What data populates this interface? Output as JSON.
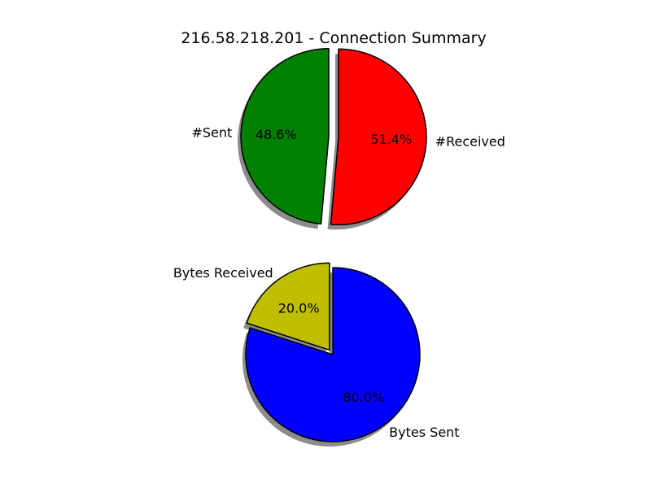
{
  "figure": {
    "title": "216.58.218.201 - Connection Summary"
  },
  "chart_data": [
    {
      "type": "pie",
      "slices": [
        {
          "label": "#Sent",
          "value": 48.6,
          "pct_label": "48.6%",
          "color": "#008000",
          "explode": true
        },
        {
          "label": "#Received",
          "value": 51.4,
          "pct_label": "51.4%",
          "color": "#ff0000",
          "explode": true
        }
      ],
      "start_angle_deg": 90,
      "direction": "counterclockwise",
      "shadow": true
    },
    {
      "type": "pie",
      "slices": [
        {
          "label": "Bytes Received",
          "value": 20.0,
          "pct_label": "20.0%",
          "color": "#bfbf00",
          "explode": true
        },
        {
          "label": "Bytes Sent",
          "value": 80.0,
          "pct_label": "80.0%",
          "color": "#0000ff",
          "explode": false
        }
      ],
      "start_angle_deg": 90,
      "direction": "counterclockwise",
      "shadow": true
    }
  ]
}
